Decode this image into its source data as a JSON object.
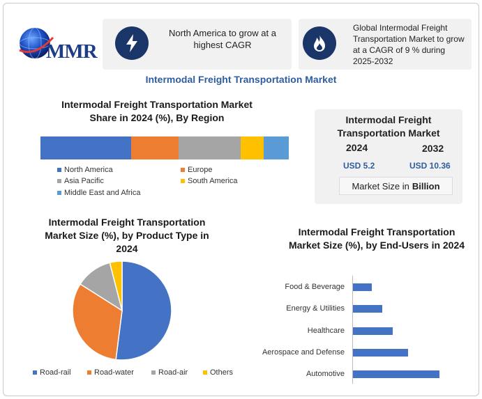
{
  "logo": {
    "text": "MMR"
  },
  "card1": {
    "icon": "lightning-icon",
    "text": "North America to grow at a highest CAGR"
  },
  "card2": {
    "icon": "flame-icon",
    "text": "Global Intermodal Freight Transportation Market to grow at a CAGR of 9 % during 2025-2032"
  },
  "main_title": "Intermodal Freight Transportation Market",
  "size_box": {
    "title": "Intermodal Freight Transportation Market",
    "year1": "2024",
    "year2": "2032",
    "value1": "USD 5.2",
    "value2": "USD 10.36",
    "unit_prefix": "Market Size in",
    "unit_bold": "Billion"
  },
  "colors": {
    "blue": "#4472c4",
    "orange": "#ed7d31",
    "gray": "#a5a5a5",
    "yellow": "#ffc000",
    "lightblue": "#5b9bd5",
    "navy": "#1a3568",
    "title_blue": "#2d5d9f"
  },
  "chart_data": [
    {
      "type": "bar",
      "orientation": "stacked-horizontal",
      "title": "Intermodal Freight Transportation Market Share in 2024 (%), By Region",
      "categories": [
        "North America",
        "Europe",
        "Asia Pacific",
        "South America",
        "Middle East and Africa"
      ],
      "values": [
        36.5,
        19,
        25,
        9.5,
        10
      ],
      "colors": [
        "#4472c4",
        "#ed7d31",
        "#a5a5a5",
        "#ffc000",
        "#5b9bd5"
      ],
      "legend": "bottom"
    },
    {
      "type": "pie",
      "title": "Intermodal Freight Transportation Market Size (%), by Product Type in 2024",
      "categories": [
        "Road-rail",
        "Road-water",
        "Road-air",
        "Others"
      ],
      "values": [
        52,
        32,
        12,
        4
      ],
      "colors": [
        "#4472c4",
        "#ed7d31",
        "#a5a5a5",
        "#ffc000"
      ],
      "legend": "bottom"
    },
    {
      "type": "bar",
      "orientation": "horizontal",
      "title": "Intermodal Freight Transportation Market Size (%), by End-Users in 2024",
      "categories": [
        "Food & Beverage",
        "Energy & Utilities",
        "Healthcare",
        "Aerospace and Defense",
        "Automotive"
      ],
      "values": [
        11,
        17,
        23,
        32,
        50
      ],
      "color": "#4472c4",
      "grid": false
    }
  ]
}
